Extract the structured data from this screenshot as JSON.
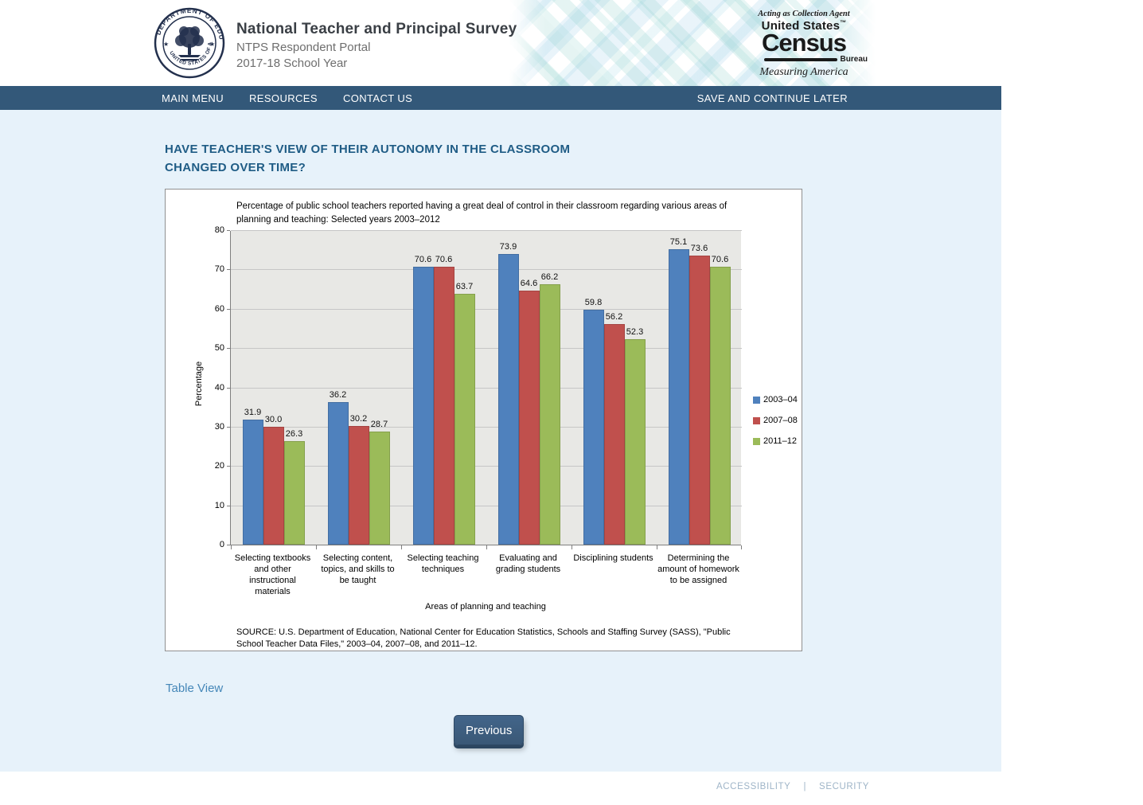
{
  "header": {
    "title": "National Teacher and Principal Survey",
    "subtitle1": "NTPS Respondent Portal",
    "subtitle2": "2017-18 School Year",
    "seal_text_top": "DEPARTMENT OF EDUCATION",
    "seal_text_bottom": "UNITED STATES OF AMERICA",
    "census": {
      "tagline": "Acting as Collection Agent",
      "line1": "United States",
      "tm": "™",
      "wordmark": "Census",
      "bureau": "Bureau",
      "motto": "Measuring America"
    }
  },
  "nav": {
    "bg_color": "#335879",
    "items": [
      {
        "label": "MAIN MENU"
      },
      {
        "label": "RESOURCES"
      },
      {
        "label": "CONTACT US"
      }
    ],
    "right_item": "SAVE AND CONTINUE LATER"
  },
  "main": {
    "question_line1": "HAVE TEACHER'S VIEW OF THEIR AUTONOMY IN THE CLASSROOM",
    "question_line2": "CHANGED OVER TIME?",
    "table_view_link": "Table View",
    "previous_button": "Previous"
  },
  "chart_data": {
    "type": "bar",
    "title": "Percentage of public school teachers reported having a great deal of control in their classroom regarding various areas of planning and teaching: Selected years 2003–2012",
    "categories": [
      "Selecting textbooks and other instructional materials",
      "Selecting content, topics, and skills to be taught",
      "Selecting teaching techniques",
      "Evaluating and grading students",
      "Disciplining students",
      "Determining the amount of homework to be assigned"
    ],
    "series": [
      {
        "name": "2003–04",
        "color": "#4F81BD",
        "values": [
          31.9,
          36.2,
          70.6,
          73.9,
          59.8,
          75.1
        ]
      },
      {
        "name": "2007–08",
        "color": "#C0504D",
        "values": [
          30.0,
          30.2,
          70.6,
          64.6,
          56.2,
          73.6
        ]
      },
      {
        "name": "2011–12",
        "color": "#9BBB59",
        "values": [
          26.3,
          28.7,
          63.7,
          66.2,
          52.3,
          70.6
        ]
      }
    ],
    "xlabel": "Areas of planning and teaching",
    "ylabel": "Percentage",
    "ylim": [
      0,
      80
    ],
    "ytick_step": 10,
    "grid": true,
    "legend_position": "right",
    "plot_bg": "#e8e8e5",
    "source": "SOURCE: U.S. Department of Education, National Center for Education Statistics, Schools and Staffing Survey (SASS), \"Public School Teacher Data Files,\" 2003–04, 2007–08, and 2011–12."
  },
  "footer": {
    "links": [
      {
        "label": "ACCESSIBILITY"
      },
      {
        "label": "SECURITY"
      }
    ],
    "separator": "|"
  }
}
